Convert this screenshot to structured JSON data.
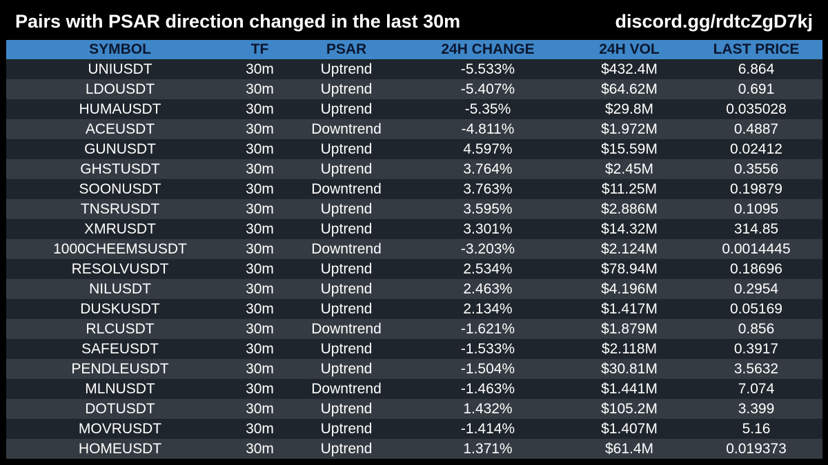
{
  "header": {
    "title": "Pairs with PSAR direction changed in the last 30m",
    "link": "discord.gg/rdtcZgD7kj"
  },
  "table": {
    "columns": [
      "SYMBOL",
      "TF",
      "PSAR",
      "24H CHANGE",
      "24H VOL",
      "LAST PRICE"
    ],
    "rows": [
      [
        "UNIUSDT",
        "30m",
        "Uptrend",
        "-5.533%",
        "$432.4M",
        "6.864"
      ],
      [
        "LDOUSDT",
        "30m",
        "Uptrend",
        "-5.407%",
        "$64.62M",
        "0.691"
      ],
      [
        "HUMAUSDT",
        "30m",
        "Uptrend",
        "-5.35%",
        "$29.8M",
        "0.035028"
      ],
      [
        "ACEUSDT",
        "30m",
        "Downtrend",
        "-4.811%",
        "$1.972M",
        "0.4887"
      ],
      [
        "GUNUSDT",
        "30m",
        "Uptrend",
        "4.597%",
        "$15.59M",
        "0.02412"
      ],
      [
        "GHSTUSDT",
        "30m",
        "Uptrend",
        "3.764%",
        "$2.45M",
        "0.3556"
      ],
      [
        "SOONUSDT",
        "30m",
        "Downtrend",
        "3.763%",
        "$11.25M",
        "0.19879"
      ],
      [
        "TNSRUSDT",
        "30m",
        "Uptrend",
        "3.595%",
        "$2.886M",
        "0.1095"
      ],
      [
        "XMRUSDT",
        "30m",
        "Uptrend",
        "3.301%",
        "$14.32M",
        "314.85"
      ],
      [
        "1000CHEEMSUSDT",
        "30m",
        "Downtrend",
        "-3.203%",
        "$2.124M",
        "0.0014445"
      ],
      [
        "RESOLVUSDT",
        "30m",
        "Uptrend",
        "2.534%",
        "$78.94M",
        "0.18696"
      ],
      [
        "NILUSDT",
        "30m",
        "Uptrend",
        "2.463%",
        "$4.196M",
        "0.2954"
      ],
      [
        "DUSKUSDT",
        "30m",
        "Uptrend",
        "2.134%",
        "$1.417M",
        "0.05169"
      ],
      [
        "RLCUSDT",
        "30m",
        "Downtrend",
        "-1.621%",
        "$1.879M",
        "0.856"
      ],
      [
        "SAFEUSDT",
        "30m",
        "Uptrend",
        "-1.533%",
        "$2.118M",
        "0.3917"
      ],
      [
        "PENDLEUSDT",
        "30m",
        "Uptrend",
        "-1.504%",
        "$30.81M",
        "3.5632"
      ],
      [
        "MLNUSDT",
        "30m",
        "Downtrend",
        "-1.463%",
        "$1.441M",
        "7.074"
      ],
      [
        "DOTUSDT",
        "30m",
        "Uptrend",
        "1.432%",
        "$105.2M",
        "3.399"
      ],
      [
        "MOVRUSDT",
        "30m",
        "Uptrend",
        "-1.414%",
        "$1.407M",
        "5.16"
      ],
      [
        "HOMEUSDT",
        "30m",
        "Uptrend",
        "1.371%",
        "$61.4M",
        "0.019373"
      ]
    ]
  },
  "colors": {
    "background": "#000000",
    "header_row": "#3e86c7",
    "header_text": "#0b1730",
    "row_dark": "#1f252c",
    "row_light": "#353b42",
    "text": "#ffffff"
  }
}
